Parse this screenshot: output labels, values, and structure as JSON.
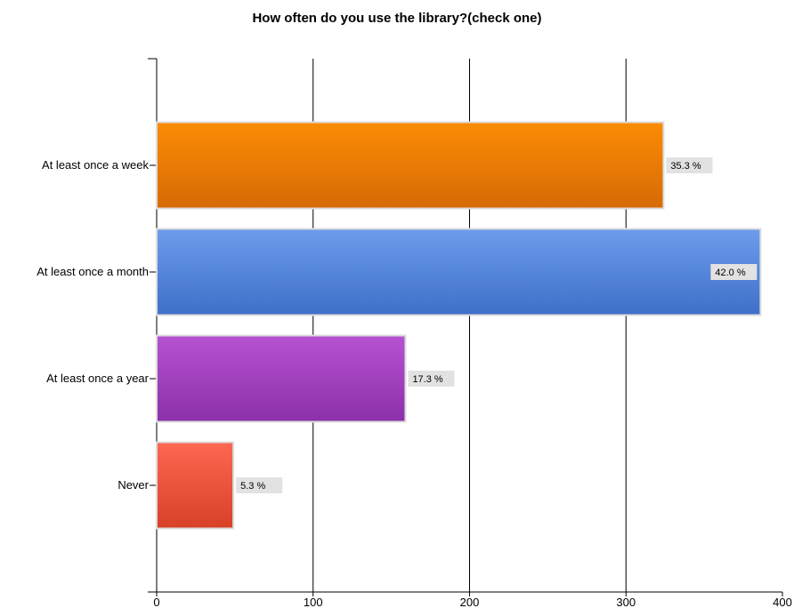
{
  "chart_data": {
    "type": "bar",
    "orientation": "horizontal",
    "title": "How often do you use the library?(check one)",
    "xlabel": "",
    "ylabel": "",
    "xlim": [
      0,
      400
    ],
    "x_ticks": [
      "0",
      "100",
      "200",
      "300",
      "400"
    ],
    "grid": true,
    "categories": [
      "At least once a week",
      "At least once a month",
      "At least once a year",
      "Never"
    ],
    "values": [
      324,
      386,
      159,
      49
    ],
    "data_labels": [
      "35.3 %",
      "42.0 %",
      "17.3 %",
      "5.3 %"
    ],
    "colors": [
      [
        "#fb8c05",
        "#d66a05"
      ],
      [
        "#6d9ceb",
        "#3f70c9"
      ],
      [
        "#b552d2",
        "#8c30aa"
      ],
      [
        "#fd6852",
        "#d84028"
      ]
    ]
  }
}
